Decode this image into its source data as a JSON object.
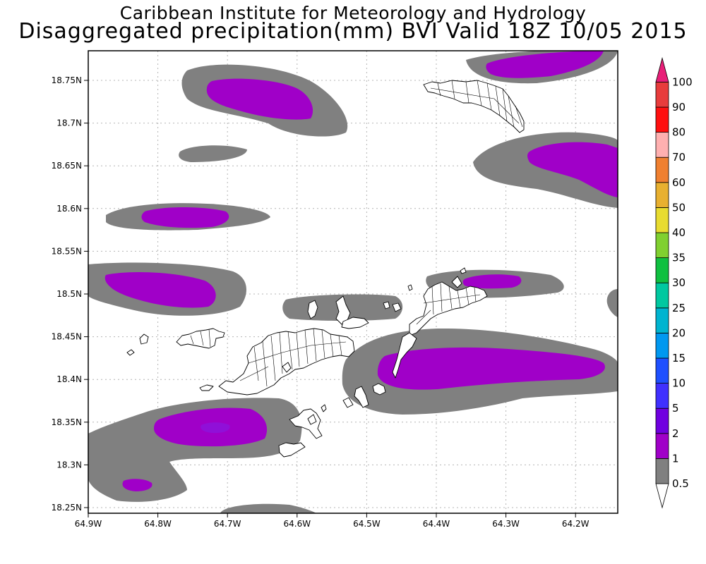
{
  "header": {
    "institute": "Caribbean Institute for Meteorology and Hydrology",
    "product": "Disaggregated precipitation(mm) BVI Valid 18Z 10/05 2015"
  },
  "map_axes": {
    "x_ticks": [
      "64.9W",
      "64.8W",
      "64.7W",
      "64.6W",
      "64.5W",
      "64.4W",
      "64.3W",
      "64.2W"
    ],
    "y_ticks": [
      "18.75N",
      "18.7N",
      "18.65N",
      "18.6N",
      "18.55N",
      "18.5N",
      "18.45N",
      "18.4N",
      "18.35N",
      "18.3N",
      "18.25N"
    ],
    "grid": true
  },
  "colorbar": {
    "labels": [
      "0.5",
      "1",
      "2",
      "5",
      "10",
      "15",
      "20",
      "25",
      "30",
      "35",
      "40",
      "50",
      "60",
      "70",
      "80",
      "90",
      "100"
    ],
    "colors": [
      "#ffffff",
      "#808080",
      "#a000c8",
      "#7000e0",
      "#4030ff",
      "#1e50ff",
      "#0098f0",
      "#00b4d0",
      "#00c8a0",
      "#10c040",
      "#80d030",
      "#e8dc30",
      "#e8b030",
      "#f08030",
      "#ffb0b0",
      "#ff1010",
      "#e83c3c",
      "#e81e78"
    ]
  },
  "colors": {
    "gray_band": "#808080",
    "purple_band": "#a000c8",
    "darker_purple": "#9010d8",
    "land": "#ffffff",
    "outline": "#000000"
  }
}
